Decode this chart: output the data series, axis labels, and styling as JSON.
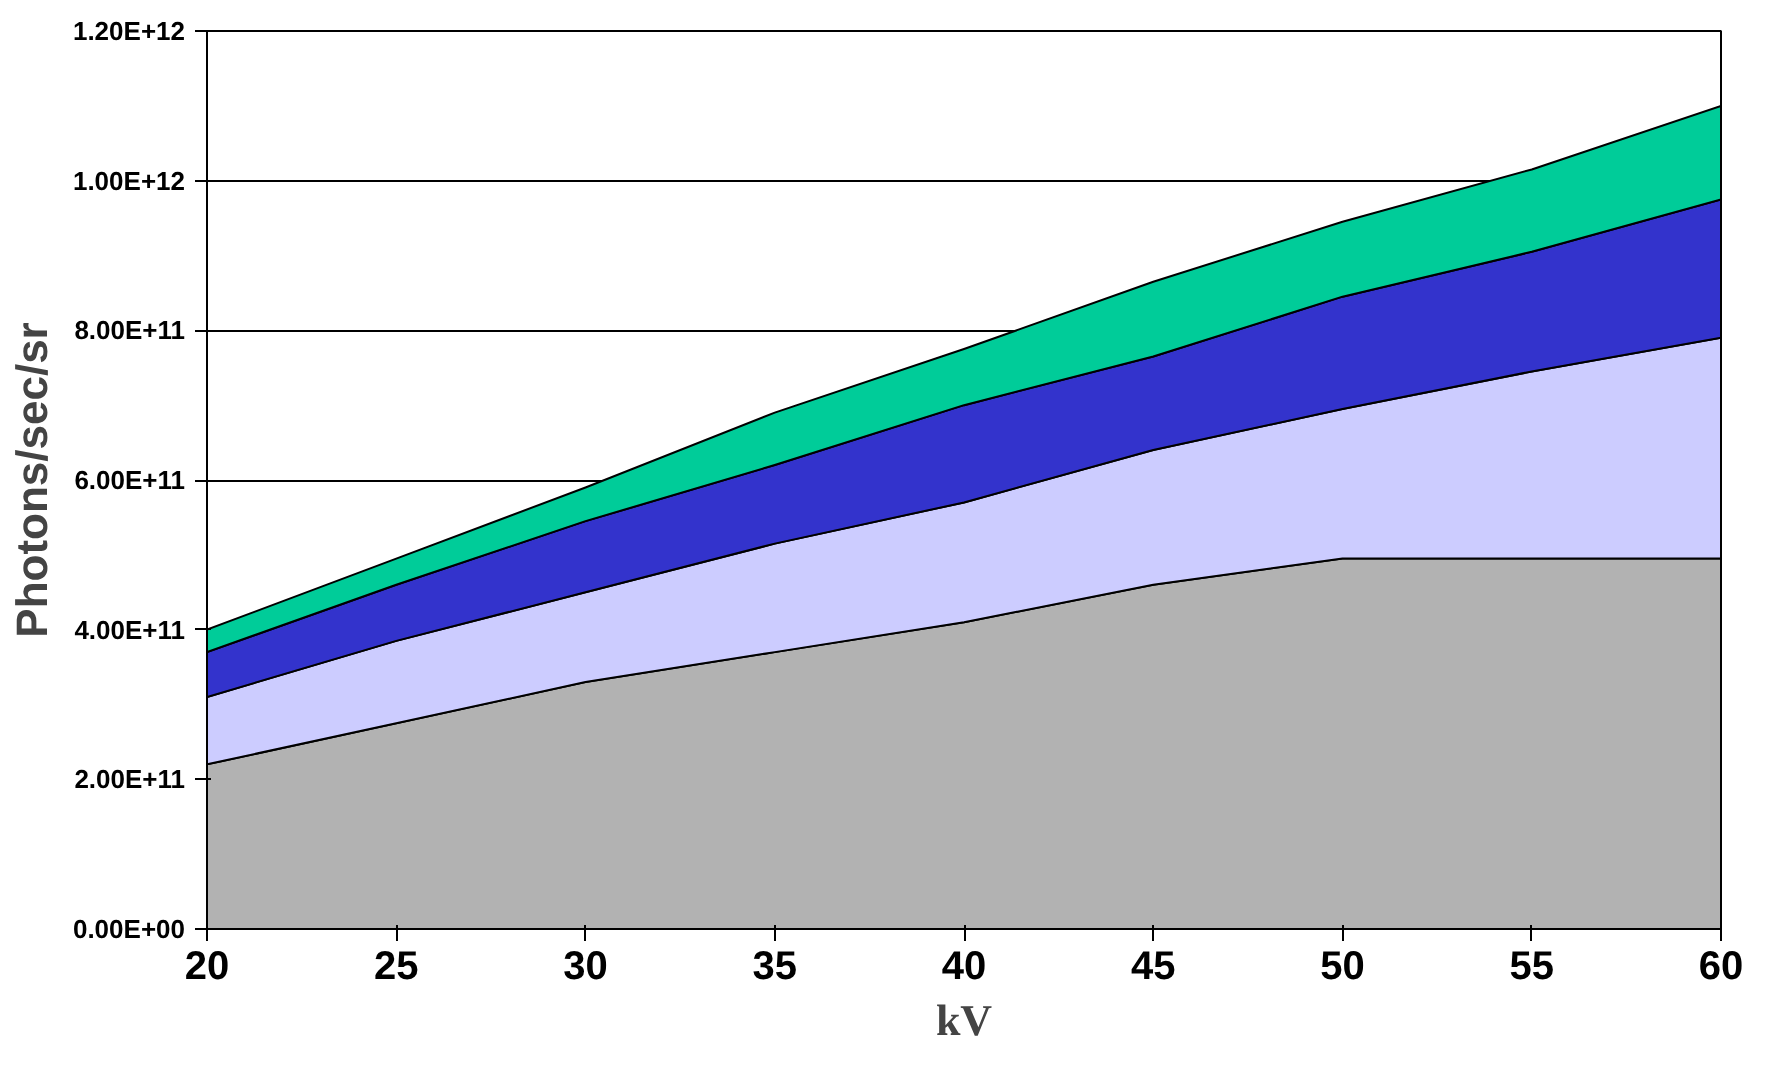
{
  "chart_data": {
    "type": "area",
    "stacked": true,
    "xlabel": "kV",
    "ylabel": "Photons/sec/sr",
    "x": [
      20,
      25,
      30,
      35,
      40,
      45,
      50,
      55,
      60
    ],
    "series": [
      {
        "color": "#b2b2b2",
        "values": [
          220000000000.0,
          275000000000.0,
          330000000000.0,
          370000000000.0,
          410000000000.0,
          460000000000.0,
          495000000000.0,
          495000000000.0,
          495000000000.0
        ]
      },
      {
        "color": "#ccccff",
        "values": [
          90000000000.0,
          110000000000.0,
          120000000000.0,
          145000000000.0,
          160000000000.0,
          180000000000.0,
          200000000000.0,
          250000000000.0,
          295000000000.0
        ]
      },
      {
        "color": "#3333cc",
        "values": [
          60000000000.0,
          75000000000.0,
          95000000000.0,
          105000000000.0,
          130000000000.0,
          125000000000.0,
          150000000000.0,
          160000000000.0,
          185000000000.0
        ]
      },
      {
        "color": "#00cc99",
        "values": [
          30000000000.0,
          35000000000.0,
          45000000000.0,
          70000000000.0,
          75000000000.0,
          100000000000.0,
          100000000000.0,
          110000000000.0,
          125000000000.0
        ]
      }
    ],
    "xlim": [
      20,
      60
    ],
    "xticks": [
      20,
      25,
      30,
      35,
      40,
      45,
      50,
      55,
      60
    ],
    "ylim": [
      0,
      1200000000000.0
    ],
    "yticks": [
      {
        "value": 0,
        "label": "0.00E+00"
      },
      {
        "value": 200000000000.0,
        "label": "2.00E+11"
      },
      {
        "value": 400000000000.0,
        "label": "4.00E+11"
      },
      {
        "value": 600000000000.0,
        "label": "6.00E+11"
      },
      {
        "value": 800000000000.0,
        "label": "8.00E+11"
      },
      {
        "value": 1000000000000.0,
        "label": "1.00E+12"
      },
      {
        "value": 1200000000000.0,
        "label": "1.20E+12"
      }
    ],
    "grid": "y"
  }
}
